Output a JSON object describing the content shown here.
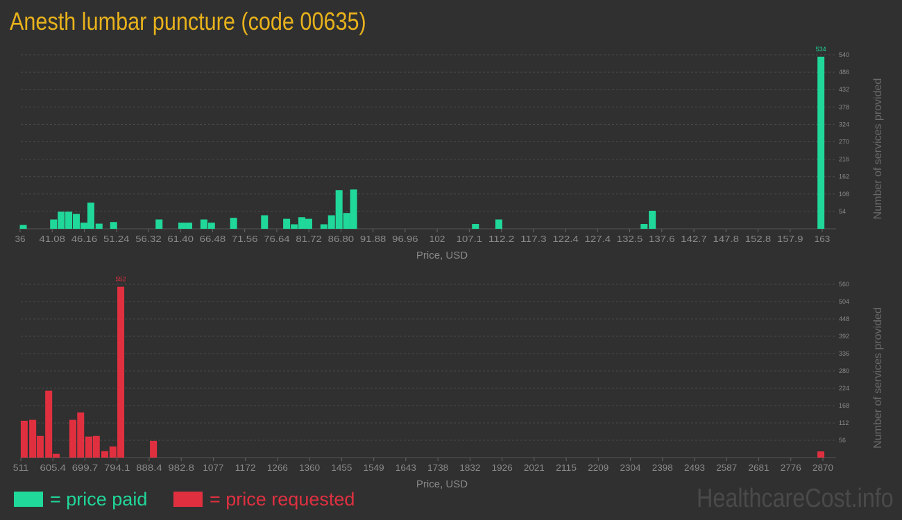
{
  "title": "Anesth lumbar puncture (code 00635)",
  "colors": {
    "paid": "#20d89a",
    "requested": "#e03040",
    "title": "#e8b21c",
    "background": "#303030"
  },
  "legend": {
    "paid": "= price paid",
    "requested": "= price requested"
  },
  "brand": "HealthcareCost.info",
  "chart_data": [
    {
      "type": "bar",
      "series_key": "paid",
      "xlabel": "Price, USD",
      "ylabel": "Number of services provided",
      "xlim": [
        36,
        163
      ],
      "ylim": [
        0,
        540
      ],
      "grid": true,
      "x_ticks": [
        "36",
        "41.08",
        "46.16",
        "51.24",
        "56.32",
        "61.40",
        "66.48",
        "71.56",
        "76.64",
        "81.72",
        "86.80",
        "91.88",
        "96.96",
        "102",
        "107.1",
        "112.2",
        "117.3",
        "122.4",
        "127.4",
        "132.5",
        "137.6",
        "142.7",
        "147.8",
        "152.8",
        "157.9",
        "163"
      ],
      "y_ticks": [
        54,
        108,
        162,
        216,
        270,
        324,
        378,
        432,
        486,
        540
      ],
      "max_label": "534",
      "x": [
        36.5,
        41.3,
        42.5,
        43.7,
        44.9,
        46.1,
        47.2,
        48.5,
        50.8,
        58.0,
        61.6,
        62.7,
        65.1,
        66.3,
        69.8,
        74.7,
        78.2,
        79.4,
        80.6,
        81.7,
        84.1,
        85.3,
        86.5,
        87.7,
        88.8,
        108.1,
        111.8,
        134.8,
        136.1,
        162.8
      ],
      "values": [
        12,
        29,
        53,
        53,
        46,
        19,
        81,
        16,
        21,
        29,
        19,
        19,
        29,
        19,
        34,
        42,
        31,
        14,
        36,
        31,
        14,
        42,
        120,
        49,
        122,
        15,
        29,
        15,
        56,
        534
      ]
    },
    {
      "type": "bar",
      "series_key": "requested",
      "xlabel": "Price, USD",
      "ylabel": "Number of services provided",
      "xlim": [
        511,
        2870
      ],
      "ylim": [
        0,
        560
      ],
      "grid": true,
      "x_ticks": [
        "511",
        "605.4",
        "699.7",
        "794.1",
        "888.4",
        "982.8",
        "1077",
        "1172",
        "1266",
        "1360",
        "1455",
        "1549",
        "1643",
        "1738",
        "1832",
        "1926",
        "2021",
        "2115",
        "2209",
        "2304",
        "2398",
        "2493",
        "2587",
        "2681",
        "2776",
        "2870"
      ],
      "y_ticks": [
        56,
        112,
        168,
        224,
        280,
        336,
        392,
        448,
        504,
        560
      ],
      "max_label": "552",
      "x": [
        521,
        546,
        568,
        593,
        615,
        664,
        687,
        711,
        733,
        758,
        782,
        805,
        901,
        2864
      ],
      "values": [
        119,
        122,
        70,
        216,
        12,
        122,
        146,
        68,
        70,
        21,
        36,
        552,
        54,
        20
      ]
    }
  ]
}
